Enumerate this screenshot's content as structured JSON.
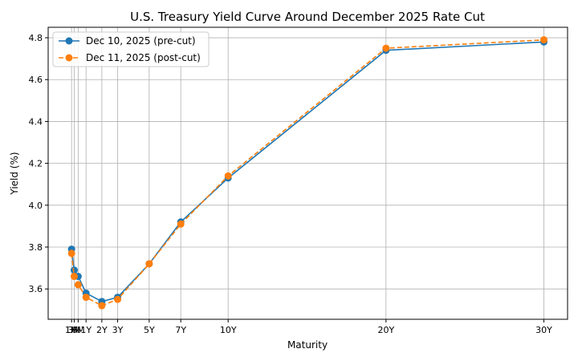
{
  "chart_data": {
    "type": "line",
    "title": "U.S. Treasury Yield Curve Around December 2025 Rate Cut",
    "xlabel": "Maturity",
    "ylabel": "Yield (%)",
    "x_unit": "years",
    "x": [
      0.0833,
      0.25,
      0.5,
      1,
      2,
      3,
      5,
      7,
      10,
      20,
      30
    ],
    "x_tick_values": [
      0.0833,
      0.25,
      0.5,
      1,
      2,
      3,
      5,
      7,
      10,
      20,
      30
    ],
    "x_tick_labels": [
      "1M",
      "3M",
      "6M",
      "1Y",
      "2Y",
      "3Y",
      "5Y",
      "7Y",
      "10Y",
      "20Y",
      "30Y"
    ],
    "xlim": [
      -1.4,
      31.5
    ],
    "ylim": [
      3.455,
      4.85
    ],
    "y_ticks": [
      3.6,
      3.8,
      4.0,
      4.2,
      4.4,
      4.6,
      4.8
    ],
    "y_tick_labels": [
      "3.6",
      "3.8",
      "4.0",
      "4.2",
      "4.4",
      "4.6",
      "4.8"
    ],
    "grid": true,
    "legend_position": "top-left",
    "series": [
      {
        "name": "Dec 10, 2025 (pre-cut)",
        "color": "#1f77b4",
        "line_style": "solid",
        "marker": "circle",
        "values": [
          3.79,
          3.69,
          3.66,
          3.58,
          3.54,
          3.56,
          3.72,
          3.92,
          4.13,
          4.74,
          4.78
        ]
      },
      {
        "name": "Dec 11, 2025 (post-cut)",
        "color": "#ff7f0e",
        "line_style": "dashed",
        "marker": "circle",
        "values": [
          3.77,
          3.66,
          3.62,
          3.56,
          3.52,
          3.55,
          3.72,
          3.91,
          4.14,
          4.75,
          4.79
        ]
      }
    ]
  }
}
